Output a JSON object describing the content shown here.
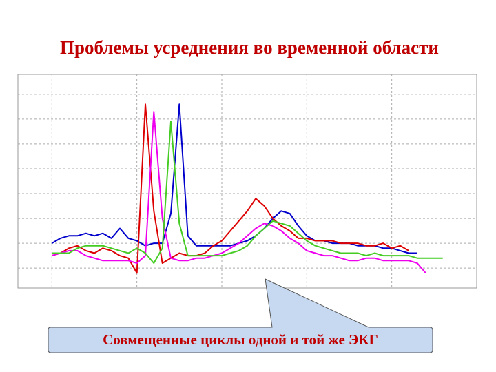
{
  "title": "Проблемы усреднения во временной области",
  "callout": "Совмещенные циклы одной и той же ЭКГ",
  "chart_data": {
    "type": "line",
    "grid": true,
    "xlim": [
      0.6,
      6.0
    ],
    "xticks": [
      1,
      2,
      3,
      4,
      5
    ],
    "ylim": [
      -0.8,
      7.8
    ],
    "yticks": [
      0,
      1,
      2,
      3,
      4,
      5,
      6,
      7
    ],
    "x": [
      1.0,
      1.1,
      1.2,
      1.3,
      1.4,
      1.5,
      1.6,
      1.7,
      1.8,
      1.9,
      2.0,
      2.1,
      2.2,
      2.3,
      2.4,
      2.5,
      2.6,
      2.7,
      2.8,
      2.9,
      3.0,
      3.1,
      3.2,
      3.3,
      3.4,
      3.5,
      3.6,
      3.7,
      3.8,
      3.9,
      4.0,
      4.1,
      4.2,
      4.3,
      4.4,
      4.5,
      4.6,
      4.7,
      4.8,
      4.9,
      5.0,
      5.1,
      5.2,
      5.3,
      5.4,
      5.5,
      5.6
    ],
    "series": [
      {
        "color": "#0000cc",
        "values": [
          1.0,
          1.2,
          1.3,
          1.3,
          1.4,
          1.3,
          1.4,
          1.2,
          1.6,
          1.2,
          1.1,
          0.9,
          1.0,
          1.0,
          2.2,
          6.6,
          1.3,
          0.9,
          0.9,
          0.9,
          0.9,
          0.9,
          1.0,
          1.1,
          1.3,
          1.6,
          2.0,
          2.3,
          2.2,
          1.7,
          1.3,
          1.1,
          1.1,
          1.0,
          1.0,
          1.0,
          0.9,
          0.9,
          0.9,
          0.8,
          0.8,
          0.7,
          0.6,
          0.6,
          null,
          null,
          null
        ]
      },
      {
        "color": "#dd0000",
        "values": [
          0.5,
          0.6,
          0.8,
          0.9,
          0.7,
          0.6,
          0.8,
          0.7,
          0.5,
          0.4,
          -0.2,
          6.6,
          2.3,
          0.2,
          0.4,
          0.6,
          0.5,
          0.5,
          0.6,
          0.9,
          1.1,
          1.5,
          1.9,
          2.3,
          2.8,
          2.5,
          2.0,
          1.7,
          1.5,
          1.2,
          1.2,
          1.1,
          1.1,
          1.1,
          1.0,
          1.0,
          1.0,
          0.9,
          0.9,
          1.0,
          0.8,
          0.9,
          0.7,
          null,
          null,
          null,
          null
        ]
      },
      {
        "color": "#ee00ee",
        "values": [
          0.5,
          0.6,
          0.7,
          0.7,
          0.5,
          0.4,
          0.3,
          0.3,
          0.3,
          0.3,
          0.2,
          0.5,
          6.3,
          2.0,
          0.4,
          0.3,
          0.3,
          0.4,
          0.4,
          0.5,
          0.6,
          0.8,
          1.0,
          1.3,
          1.6,
          1.8,
          1.7,
          1.5,
          1.2,
          1.0,
          0.7,
          0.6,
          0.5,
          0.5,
          0.4,
          0.3,
          0.3,
          0.4,
          0.4,
          0.3,
          0.3,
          0.3,
          0.3,
          0.2,
          -0.2,
          null,
          null
        ]
      },
      {
        "color": "#44cc22",
        "values": [
          0.6,
          0.6,
          0.6,
          0.8,
          0.9,
          0.9,
          0.9,
          0.8,
          0.7,
          0.6,
          0.8,
          0.6,
          0.2,
          0.8,
          5.9,
          1.8,
          0.5,
          0.5,
          0.5,
          0.5,
          0.5,
          0.6,
          0.7,
          0.9,
          1.3,
          1.6,
          1.9,
          1.8,
          1.7,
          1.4,
          1.1,
          0.9,
          0.8,
          0.7,
          0.6,
          0.6,
          0.6,
          0.5,
          0.6,
          0.5,
          0.5,
          0.5,
          0.5,
          0.4,
          0.4,
          0.4,
          0.4
        ]
      }
    ]
  }
}
